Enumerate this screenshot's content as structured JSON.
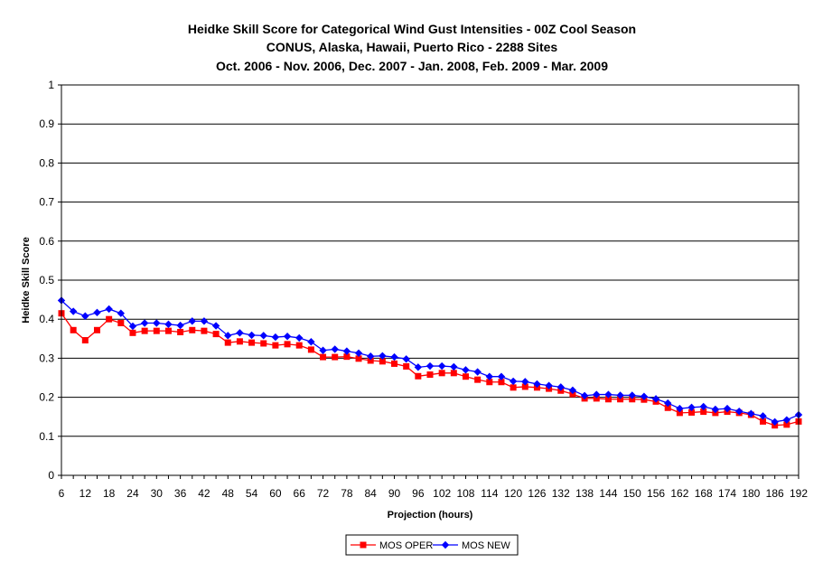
{
  "chart_data": {
    "type": "line",
    "title": "Heidke Skill Score for Categorical Wind Gust Intensities - 00Z Cool Season",
    "subtitle_lines": [
      "CONUS, Alaska, Hawaii, Puerto Rico - 2288 Sites",
      "Oct. 2006 - Nov. 2006, Dec. 2007 - Jan. 2008, Feb. 2009 - Mar. 2009"
    ],
    "xlabel": "Projection (hours)",
    "ylabel": "Heidke Skill Score",
    "xlim": [
      6,
      192
    ],
    "ylim": [
      0,
      1
    ],
    "x_ticks": [
      6,
      12,
      18,
      24,
      30,
      36,
      42,
      48,
      54,
      60,
      66,
      72,
      78,
      84,
      90,
      96,
      102,
      108,
      114,
      120,
      126,
      132,
      138,
      144,
      150,
      156,
      162,
      168,
      174,
      180,
      186,
      192
    ],
    "y_ticks": [
      "0",
      "0.1",
      "0.2",
      "0.3",
      "0.4",
      "0.5",
      "0.6",
      "0.7",
      "0.8",
      "0.9",
      "1"
    ],
    "grid": "horizontal",
    "legend_position": "bottom",
    "x": [
      6,
      9,
      12,
      15,
      18,
      21,
      24,
      27,
      30,
      33,
      36,
      39,
      42,
      45,
      48,
      51,
      54,
      57,
      60,
      63,
      66,
      69,
      72,
      75,
      78,
      81,
      84,
      87,
      90,
      93,
      96,
      99,
      102,
      105,
      108,
      111,
      114,
      117,
      120,
      123,
      126,
      129,
      132,
      135,
      138,
      141,
      144,
      147,
      150,
      153,
      156,
      159,
      162,
      165,
      168,
      171,
      174,
      177,
      180,
      183,
      186,
      189,
      192
    ],
    "series": [
      {
        "name": "MOS OPER",
        "color": "#ff0000",
        "marker": "square",
        "values": [
          0.415,
          0.372,
          0.346,
          0.372,
          0.4,
          0.39,
          0.365,
          0.37,
          0.37,
          0.37,
          0.367,
          0.372,
          0.37,
          0.362,
          0.34,
          0.343,
          0.34,
          0.338,
          0.333,
          0.336,
          0.333,
          0.322,
          0.303,
          0.303,
          0.304,
          0.299,
          0.294,
          0.292,
          0.286,
          0.279,
          0.254,
          0.258,
          0.262,
          0.262,
          0.253,
          0.245,
          0.239,
          0.239,
          0.225,
          0.227,
          0.225,
          0.222,
          0.217,
          0.208,
          0.197,
          0.197,
          0.195,
          0.195,
          0.195,
          0.194,
          0.189,
          0.173,
          0.16,
          0.161,
          0.163,
          0.16,
          0.163,
          0.16,
          0.155,
          0.138,
          0.128,
          0.13,
          0.138
        ]
      },
      {
        "name": "MOS NEW",
        "color": "#0000ff",
        "marker": "diamond",
        "values": [
          0.448,
          0.42,
          0.408,
          0.417,
          0.426,
          0.415,
          0.382,
          0.39,
          0.39,
          0.387,
          0.384,
          0.395,
          0.395,
          0.383,
          0.358,
          0.365,
          0.359,
          0.358,
          0.354,
          0.356,
          0.352,
          0.342,
          0.32,
          0.323,
          0.318,
          0.313,
          0.305,
          0.306,
          0.303,
          0.298,
          0.277,
          0.28,
          0.28,
          0.278,
          0.27,
          0.265,
          0.253,
          0.253,
          0.241,
          0.24,
          0.234,
          0.23,
          0.226,
          0.218,
          0.204,
          0.207,
          0.207,
          0.205,
          0.205,
          0.202,
          0.196,
          0.185,
          0.171,
          0.174,
          0.176,
          0.169,
          0.171,
          0.164,
          0.158,
          0.152,
          0.137,
          0.142,
          0.155
        ]
      }
    ]
  },
  "colors": {
    "plot_border": "#000000",
    "gridline": "#000000",
    "background": "#ffffff"
  }
}
